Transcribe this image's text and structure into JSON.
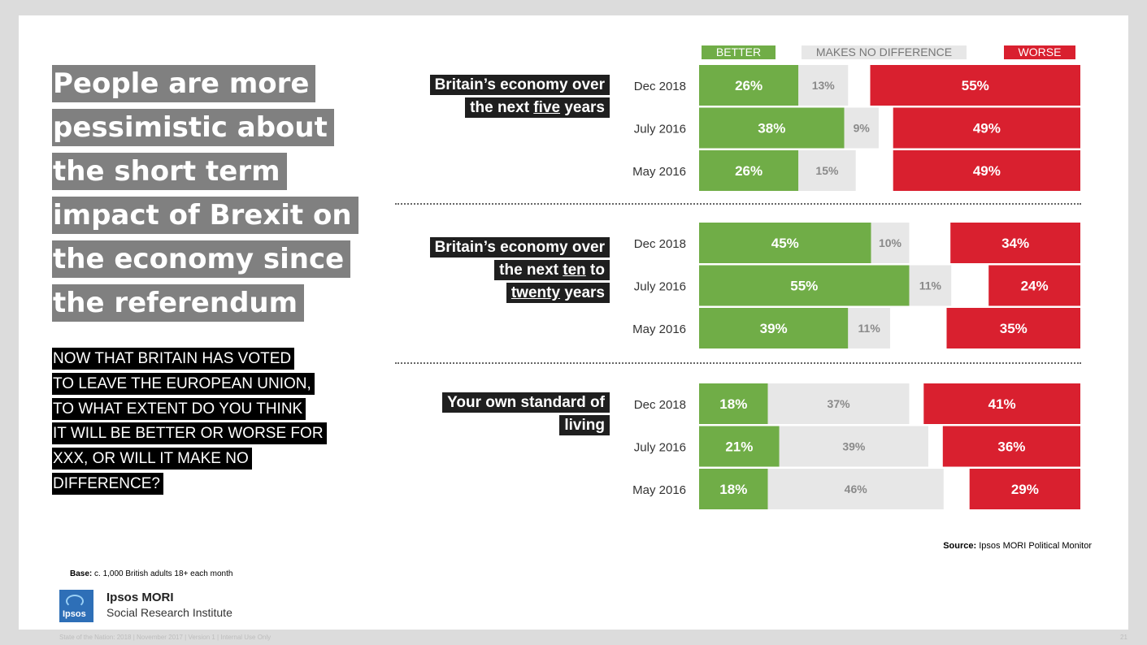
{
  "title_lines": [
    "People are more",
    "pessimistic about",
    "the short term",
    "impact of Brexit on",
    "the economy since",
    "the referendum"
  ],
  "question_lines": [
    "NOW THAT BRITAIN HAS VOTED",
    "TO LEAVE THE EUROPEAN UNION,",
    "TO WHAT EXTENT DO YOU THINK",
    "IT WILL BE BETTER OR WORSE FOR",
    "XXX, OR WILL IT MAKE NO",
    "DIFFERENCE?"
  ],
  "base": {
    "label": "Base:",
    "text": "c. 1,000 British adults 18+ each month"
  },
  "source": {
    "label": "Source:",
    "text": "Ipsos MORI Political Monitor"
  },
  "logo": {
    "box_text": "Ipsos",
    "name": "Ipsos MORI",
    "sub": "Social Research Institute"
  },
  "footer": "State of the Nation: 2018 | November 2017 | Version 1 |   Internal Use Only",
  "page_number": "21",
  "legend": {
    "better": "BETTER",
    "no_difference": "MAKES NO DIFFERENCE",
    "worse": "WORSE"
  },
  "colors": {
    "better": "#70ad47",
    "no_difference": "#e7e7e7",
    "worse": "#d9202f"
  },
  "group_labels": [
    {
      "line1": "Britain’s economy over",
      "line2_pre": "the next ",
      "line2_u": "five",
      "line2_post": " years"
    },
    {
      "line1": "Britain’s economy over",
      "line2_pre": "the next ",
      "line2_u": "ten",
      "line2_post": " to",
      "line3_u": "twenty",
      "line3_post": " years"
    },
    {
      "line1": "Your own standard of",
      "line2": "living"
    }
  ],
  "chart_data": {
    "type": "bar",
    "stacked": "diverging",
    "legend": [
      "BETTER",
      "MAKES NO DIFFERENCE",
      "WORSE"
    ],
    "groups": [
      {
        "name": "Britain’s economy over the next five years",
        "rows": [
          {
            "label": "Dec 2018",
            "better": 26,
            "no_difference": 13,
            "worse": 55
          },
          {
            "label": "July 2016",
            "better": 38,
            "no_difference": 9,
            "worse": 49
          },
          {
            "label": "May 2016",
            "better": 26,
            "no_difference": 15,
            "worse": 49
          }
        ]
      },
      {
        "name": "Britain’s economy over the next ten to twenty years",
        "rows": [
          {
            "label": "Dec 2018",
            "better": 45,
            "no_difference": 10,
            "worse": 34
          },
          {
            "label": "July 2016",
            "better": 55,
            "no_difference": 11,
            "worse": 24
          },
          {
            "label": "May 2016",
            "better": 39,
            "no_difference": 11,
            "worse": 35
          }
        ]
      },
      {
        "name": "Your own standard of living",
        "rows": [
          {
            "label": "Dec 2018",
            "better": 18,
            "no_difference": 37,
            "worse": 41
          },
          {
            "label": "July 2016",
            "better": 21,
            "no_difference": 39,
            "worse": 36
          },
          {
            "label": "May 2016",
            "better": 18,
            "no_difference": 46,
            "worse": 29
          }
        ]
      }
    ]
  }
}
